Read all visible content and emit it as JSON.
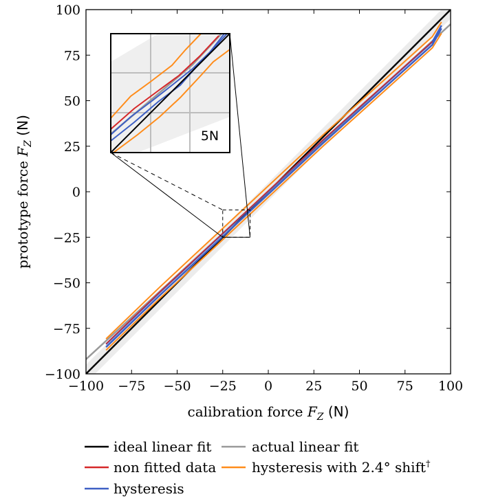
{
  "chart_data": {
    "type": "line",
    "xlabel": "calibration force",
    "xlabel_var": "F",
    "xlabel_sub": "Z",
    "xlabel_unit": "(N)",
    "ylabel": "prototype force",
    "ylabel_var": "F",
    "ylabel_sub": "Z",
    "ylabel_unit": "(N)",
    "xlim": [
      -100,
      100
    ],
    "ylim": [
      -100,
      100
    ],
    "x_ticks": [
      -100,
      -75,
      -50,
      -25,
      0,
      25,
      50,
      75,
      100
    ],
    "y_ticks": [
      -100,
      -75,
      -50,
      -25,
      0,
      25,
      50,
      75,
      100
    ],
    "x_tick_labels": [
      "−100",
      "−75",
      "−50",
      "−25",
      "0",
      "25",
      "50",
      "75",
      "100"
    ],
    "y_tick_labels": [
      "−100",
      "−75",
      "−50",
      "−25",
      "0",
      "25",
      "50",
      "75",
      "100"
    ],
    "tolerance_band": {
      "half_width": 5,
      "color": "#ececec"
    },
    "series": [
      {
        "name": "ideal linear fit",
        "color": "#000000",
        "x": [
          -100,
          100
        ],
        "y": [
          -100,
          100
        ]
      },
      {
        "name": "actual linear fit",
        "color": "#999999",
        "x": [
          -100,
          100
        ],
        "y": [
          -92,
          92
        ]
      },
      {
        "name": "non fitted data",
        "color": "#d62728",
        "x": [
          -89,
          -60,
          -30,
          0,
          30,
          60,
          90
        ],
        "y": [
          -84,
          -56,
          -28,
          0,
          28,
          55,
          82
        ]
      },
      {
        "name": "hysteresis",
        "color": "#3d5fc4",
        "x": [
          -89,
          -60,
          -30,
          0,
          30,
          60,
          90,
          95
        ],
        "y": [
          -84,
          -56,
          -28,
          0,
          28,
          55,
          82,
          91
        ]
      },
      {
        "name": "hysteresis with 2.4° shift",
        "legend_suffix": "†",
        "color": "#ff8c1a",
        "x": [
          -89,
          -60,
          -30,
          0,
          30,
          60,
          90,
          95
        ],
        "y": [
          -82,
          -54,
          -26,
          2,
          30,
          57,
          84,
          92
        ]
      }
    ],
    "zoom": {
      "region_x": [
        -25,
        -10
      ],
      "region_y": [
        -25,
        -10
      ],
      "label": "5N"
    },
    "legend": {
      "placement": "bottom",
      "columns": 2,
      "order": [
        "ideal linear fit",
        "actual linear fit",
        "non fitted data",
        "hysteresis with 2.4° shift",
        "hysteresis"
      ]
    },
    "grid": false
  }
}
